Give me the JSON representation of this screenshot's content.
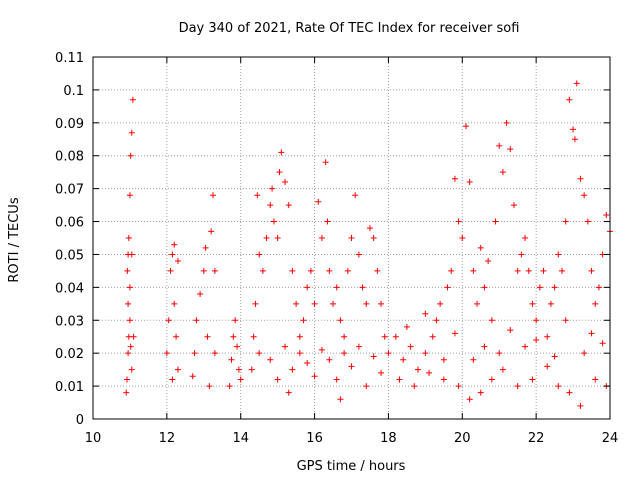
{
  "chart_data": {
    "type": "scatter",
    "title": "Day 340 of 2021, Rate Of TEC Index for receiver sofi",
    "xlabel": "GPS time / hours",
    "ylabel": "ROTI / TECUs",
    "xlim": [
      10,
      24
    ],
    "ylim": [
      0,
      0.11
    ],
    "x_ticks": [
      "10",
      "12",
      "14",
      "16",
      "18",
      "20",
      "22",
      "24"
    ],
    "y_ticks": [
      "0",
      "0.01",
      "0.02",
      "0.03",
      "0.04",
      "0.05",
      "0.06",
      "0.07",
      "0.08",
      "0.09",
      "0.1",
      "0.11"
    ],
    "grid": true,
    "marker": "+",
    "color": "#ff0000",
    "series": [
      {
        "name": "ROTI",
        "points": [
          [
            10.9,
            0.008
          ],
          [
            10.92,
            0.012
          ],
          [
            10.95,
            0.02
          ],
          [
            10.97,
            0.025
          ],
          [
            11.0,
            0.03
          ],
          [
            11.02,
            0.022
          ],
          [
            11.05,
            0.015
          ],
          [
            10.93,
            0.045
          ],
          [
            10.95,
            0.05
          ],
          [
            10.97,
            0.055
          ],
          [
            11.0,
            0.068
          ],
          [
            11.02,
            0.08
          ],
          [
            11.05,
            0.087
          ],
          [
            11.08,
            0.097
          ],
          [
            11.1,
            0.025
          ],
          [
            10.95,
            0.035
          ],
          [
            11.0,
            0.04
          ],
          [
            11.05,
            0.05
          ],
          [
            12.0,
            0.02
          ],
          [
            12.05,
            0.03
          ],
          [
            12.1,
            0.045
          ],
          [
            12.15,
            0.05
          ],
          [
            12.2,
            0.035
          ],
          [
            12.25,
            0.025
          ],
          [
            12.3,
            0.015
          ],
          [
            12.2,
            0.053
          ],
          [
            12.3,
            0.048
          ],
          [
            12.15,
            0.012
          ],
          [
            12.7,
            0.013
          ],
          [
            12.75,
            0.02
          ],
          [
            12.8,
            0.03
          ],
          [
            12.9,
            0.038
          ],
          [
            13.0,
            0.045
          ],
          [
            13.05,
            0.052
          ],
          [
            13.1,
            0.025
          ],
          [
            13.2,
            0.057
          ],
          [
            13.25,
            0.068
          ],
          [
            13.3,
            0.045
          ],
          [
            13.15,
            0.01
          ],
          [
            13.3,
            0.02
          ],
          [
            13.7,
            0.01
          ],
          [
            13.75,
            0.018
          ],
          [
            13.8,
            0.025
          ],
          [
            13.85,
            0.03
          ],
          [
            13.9,
            0.022
          ],
          [
            13.95,
            0.015
          ],
          [
            14.0,
            0.012
          ],
          [
            14.3,
            0.015
          ],
          [
            14.35,
            0.025
          ],
          [
            14.4,
            0.035
          ],
          [
            14.45,
            0.068
          ],
          [
            14.5,
            0.05
          ],
          [
            14.6,
            0.045
          ],
          [
            14.7,
            0.055
          ],
          [
            14.8,
            0.065
          ],
          [
            14.85,
            0.07
          ],
          [
            14.9,
            0.06
          ],
          [
            15.0,
            0.055
          ],
          [
            15.05,
            0.075
          ],
          [
            15.1,
            0.081
          ],
          [
            15.2,
            0.072
          ],
          [
            15.3,
            0.065
          ],
          [
            15.4,
            0.045
          ],
          [
            15.5,
            0.035
          ],
          [
            15.6,
            0.025
          ],
          [
            15.7,
            0.03
          ],
          [
            15.8,
            0.04
          ],
          [
            15.9,
            0.045
          ],
          [
            16.0,
            0.035
          ],
          [
            16.1,
            0.066
          ],
          [
            16.2,
            0.055
          ],
          [
            16.3,
            0.078
          ],
          [
            16.35,
            0.06
          ],
          [
            16.4,
            0.045
          ],
          [
            16.5,
            0.035
          ],
          [
            16.6,
            0.04
          ],
          [
            16.7,
            0.03
          ],
          [
            16.8,
            0.025
          ],
          [
            16.9,
            0.045
          ],
          [
            17.0,
            0.055
          ],
          [
            17.1,
            0.068
          ],
          [
            17.2,
            0.05
          ],
          [
            17.3,
            0.04
          ],
          [
            17.4,
            0.035
          ],
          [
            17.5,
            0.058
          ],
          [
            17.6,
            0.055
          ],
          [
            17.7,
            0.045
          ],
          [
            17.8,
            0.035
          ],
          [
            17.9,
            0.025
          ],
          [
            14.5,
            0.02
          ],
          [
            14.8,
            0.018
          ],
          [
            15.0,
            0.012
          ],
          [
            15.2,
            0.022
          ],
          [
            15.4,
            0.015
          ],
          [
            15.6,
            0.02
          ],
          [
            15.8,
            0.017
          ],
          [
            16.0,
            0.013
          ],
          [
            16.2,
            0.021
          ],
          [
            16.4,
            0.018
          ],
          [
            16.6,
            0.012
          ],
          [
            16.8,
            0.02
          ],
          [
            17.0,
            0.016
          ],
          [
            17.2,
            0.022
          ],
          [
            17.4,
            0.01
          ],
          [
            17.6,
            0.019
          ],
          [
            17.8,
            0.014
          ],
          [
            15.3,
            0.008
          ],
          [
            16.7,
            0.006
          ],
          [
            18.0,
            0.02
          ],
          [
            18.2,
            0.025
          ],
          [
            18.4,
            0.018
          ],
          [
            18.6,
            0.022
          ],
          [
            18.8,
            0.015
          ],
          [
            19.0,
            0.02
          ],
          [
            19.2,
            0.025
          ],
          [
            19.3,
            0.03
          ],
          [
            19.4,
            0.035
          ],
          [
            19.5,
            0.018
          ],
          [
            19.6,
            0.04
          ],
          [
            19.7,
            0.045
          ],
          [
            19.8,
            0.073
          ],
          [
            19.9,
            0.06
          ],
          [
            20.0,
            0.055
          ],
          [
            20.1,
            0.089
          ],
          [
            20.2,
            0.072
          ],
          [
            20.3,
            0.045
          ],
          [
            20.4,
            0.035
          ],
          [
            20.5,
            0.052
          ],
          [
            20.6,
            0.04
          ],
          [
            20.7,
            0.048
          ],
          [
            20.8,
            0.03
          ],
          [
            20.9,
            0.06
          ],
          [
            21.0,
            0.083
          ],
          [
            21.1,
            0.075
          ],
          [
            21.2,
            0.09
          ],
          [
            21.3,
            0.082
          ],
          [
            21.4,
            0.065
          ],
          [
            21.5,
            0.045
          ],
          [
            21.6,
            0.05
          ],
          [
            21.7,
            0.055
          ],
          [
            21.8,
            0.045
          ],
          [
            21.9,
            0.035
          ],
          [
            22.0,
            0.03
          ],
          [
            22.1,
            0.04
          ],
          [
            22.2,
            0.045
          ],
          [
            22.3,
            0.025
          ],
          [
            22.4,
            0.035
          ],
          [
            22.5,
            0.04
          ],
          [
            22.6,
            0.05
          ],
          [
            22.7,
            0.045
          ],
          [
            22.8,
            0.06
          ],
          [
            22.9,
            0.097
          ],
          [
            23.0,
            0.088
          ],
          [
            23.05,
            0.085
          ],
          [
            23.1,
            0.102
          ],
          [
            23.2,
            0.073
          ],
          [
            23.3,
            0.068
          ],
          [
            23.4,
            0.06
          ],
          [
            23.5,
            0.045
          ],
          [
            23.6,
            0.035
          ],
          [
            23.7,
            0.04
          ],
          [
            23.8,
            0.05
          ],
          [
            23.9,
            0.062
          ],
          [
            24.0,
            0.057
          ],
          [
            18.3,
            0.012
          ],
          [
            18.7,
            0.01
          ],
          [
            19.1,
            0.014
          ],
          [
            19.5,
            0.012
          ],
          [
            19.9,
            0.01
          ],
          [
            20.2,
            0.006
          ],
          [
            20.5,
            0.008
          ],
          [
            20.8,
            0.012
          ],
          [
            21.1,
            0.015
          ],
          [
            21.5,
            0.01
          ],
          [
            21.9,
            0.012
          ],
          [
            22.3,
            0.016
          ],
          [
            22.6,
            0.01
          ],
          [
            22.9,
            0.008
          ],
          [
            23.2,
            0.004
          ],
          [
            23.6,
            0.012
          ],
          [
            23.9,
            0.01
          ],
          [
            18.5,
            0.028
          ],
          [
            19.0,
            0.032
          ],
          [
            19.8,
            0.026
          ],
          [
            20.6,
            0.022
          ],
          [
            21.3,
            0.027
          ],
          [
            22.0,
            0.024
          ],
          [
            22.8,
            0.03
          ],
          [
            23.5,
            0.026
          ],
          [
            20.3,
            0.018
          ],
          [
            21.0,
            0.02
          ],
          [
            21.7,
            0.022
          ],
          [
            22.5,
            0.019
          ],
          [
            23.3,
            0.02
          ],
          [
            23.8,
            0.023
          ]
        ]
      }
    ]
  }
}
